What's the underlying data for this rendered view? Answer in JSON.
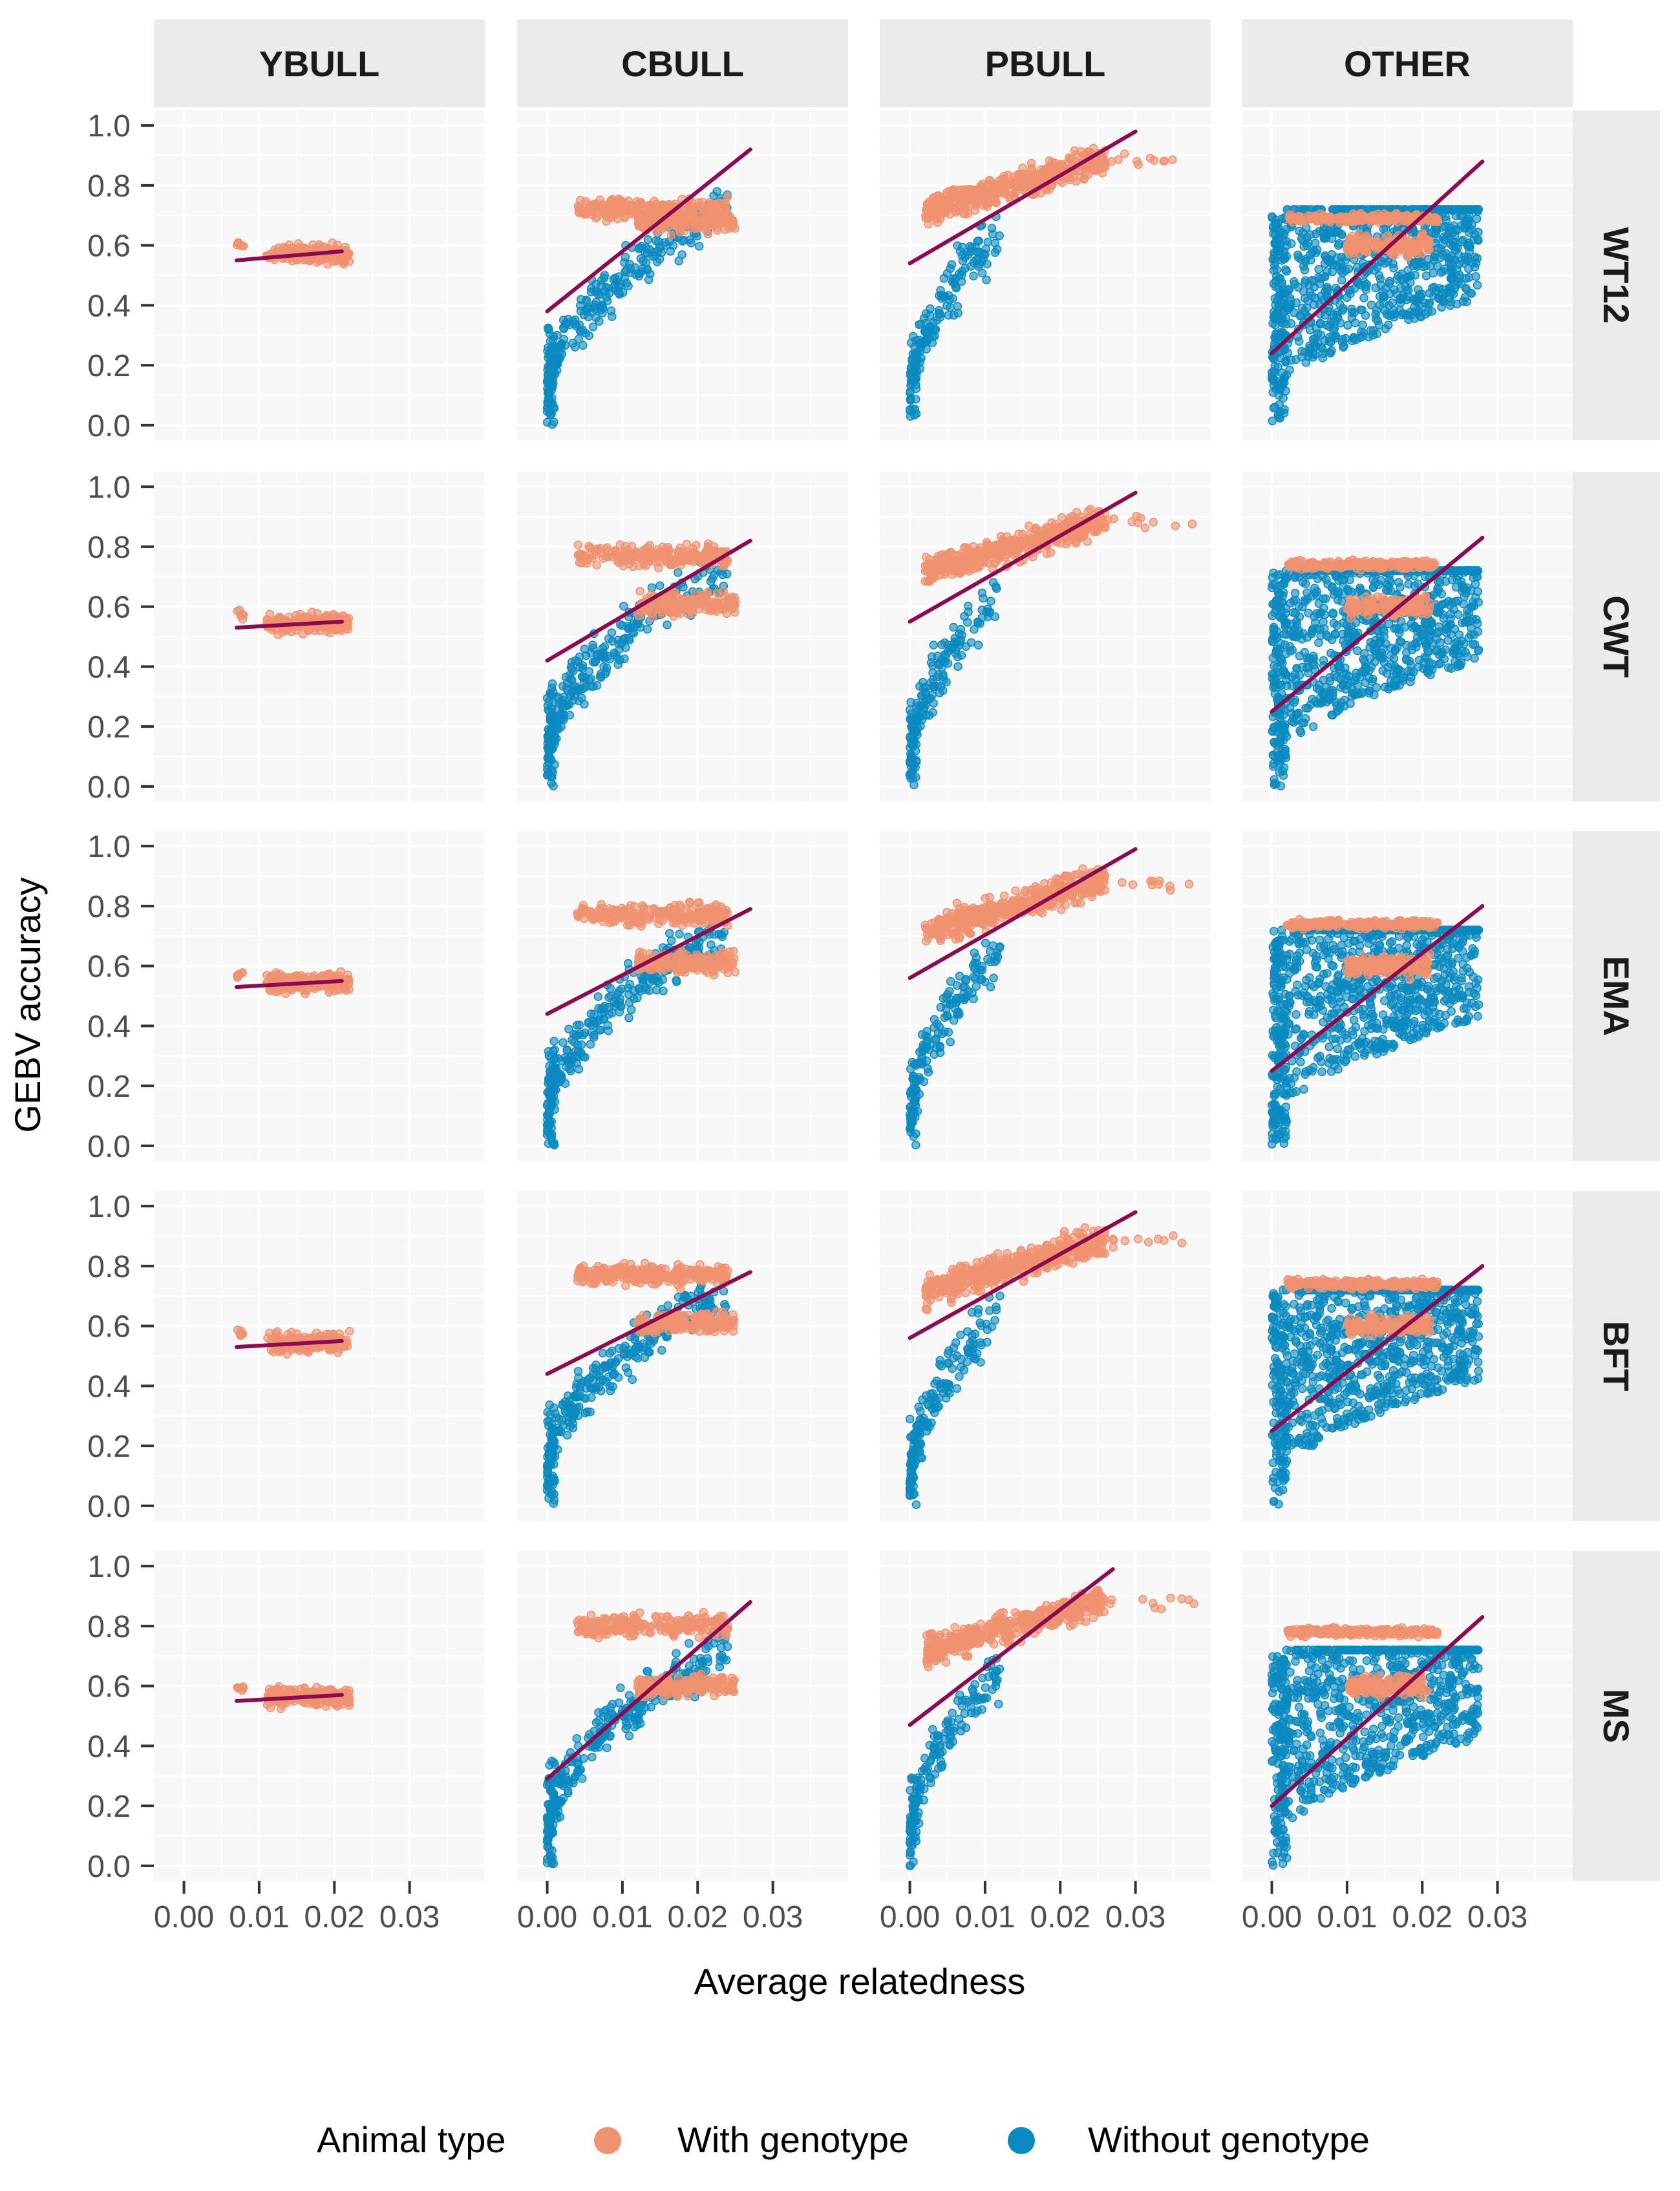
{
  "chart_data": {
    "type": "scatter",
    "facets": {
      "columns": [
        "YBULL",
        "CBULL",
        "PBULL",
        "OTHER"
      ],
      "rows": [
        "WT12",
        "CWT",
        "EMA",
        "BFT",
        "MS"
      ]
    },
    "xlabel": "Average relatedness",
    "ylabel": "GEBV accuracy",
    "xlim": [
      -0.004,
      0.04
    ],
    "ylim": [
      -0.05,
      1.05
    ],
    "x_ticks": [
      0.0,
      0.01,
      0.02,
      0.03
    ],
    "x_tick_labels": [
      "0.00",
      "0.01",
      "0.02",
      "0.03"
    ],
    "y_ticks": [
      0.0,
      0.2,
      0.4,
      0.6,
      0.8,
      1.0
    ],
    "y_tick_labels": [
      "0.0",
      "0.2",
      "0.4",
      "0.6",
      "0.8",
      "1.0"
    ],
    "grid": true,
    "legend": {
      "title": "Animal type",
      "position": "bottom",
      "entries": [
        {
          "label": "With genotype",
          "color": "#F0916F"
        },
        {
          "label": "Without genotype",
          "color": "#0A8AC0"
        }
      ]
    },
    "colors": {
      "with_genotype": "#F0916F",
      "without_genotype": "#0A8AC0",
      "regression_line": "#8B0A50",
      "panel_background": "#F7F7F7",
      "strip_background": "#EBEBEB"
    },
    "regression_lines": {
      "WT12": {
        "YBULL": {
          "x": [
            0.007,
            0.021
          ],
          "y": [
            0.55,
            0.58
          ]
        },
        "CBULL": {
          "x": [
            0.0,
            0.027
          ],
          "y": [
            0.38,
            0.92
          ]
        },
        "PBULL": {
          "x": [
            0.0,
            0.03
          ],
          "y": [
            0.54,
            0.98
          ]
        },
        "OTHER": {
          "x": [
            0.0,
            0.028
          ],
          "y": [
            0.24,
            0.88
          ]
        }
      },
      "CWT": {
        "YBULL": {
          "x": [
            0.007,
            0.021
          ],
          "y": [
            0.53,
            0.55
          ]
        },
        "CBULL": {
          "x": [
            0.0,
            0.027
          ],
          "y": [
            0.42,
            0.82
          ]
        },
        "PBULL": {
          "x": [
            0.0,
            0.03
          ],
          "y": [
            0.55,
            0.98
          ]
        },
        "OTHER": {
          "x": [
            0.0,
            0.028
          ],
          "y": [
            0.25,
            0.83
          ]
        }
      },
      "EMA": {
        "YBULL": {
          "x": [
            0.007,
            0.021
          ],
          "y": [
            0.53,
            0.55
          ]
        },
        "CBULL": {
          "x": [
            0.0,
            0.027
          ],
          "y": [
            0.44,
            0.79
          ]
        },
        "PBULL": {
          "x": [
            0.0,
            0.03
          ],
          "y": [
            0.56,
            0.99
          ]
        },
        "OTHER": {
          "x": [
            0.0,
            0.028
          ],
          "y": [
            0.25,
            0.8
          ]
        }
      },
      "BFT": {
        "YBULL": {
          "x": [
            0.007,
            0.021
          ],
          "y": [
            0.53,
            0.55
          ]
        },
        "CBULL": {
          "x": [
            0.0,
            0.027
          ],
          "y": [
            0.44,
            0.78
          ]
        },
        "PBULL": {
          "x": [
            0.0,
            0.03
          ],
          "y": [
            0.56,
            0.98
          ]
        },
        "OTHER": {
          "x": [
            0.0,
            0.028
          ],
          "y": [
            0.25,
            0.8
          ]
        }
      },
      "MS": {
        "YBULL": {
          "x": [
            0.007,
            0.021
          ],
          "y": [
            0.55,
            0.57
          ]
        },
        "CBULL": {
          "x": [
            0.0,
            0.027
          ],
          "y": [
            0.29,
            0.88
          ]
        },
        "PBULL": {
          "x": [
            0.0,
            0.027
          ],
          "y": [
            0.47,
            0.99
          ]
        },
        "OTHER": {
          "x": [
            0.0,
            0.028
          ],
          "y": [
            0.2,
            0.83
          ]
        }
      }
    },
    "series": [
      {
        "name": "With genotype"
      },
      {
        "name": "Without genotype"
      }
    ]
  }
}
